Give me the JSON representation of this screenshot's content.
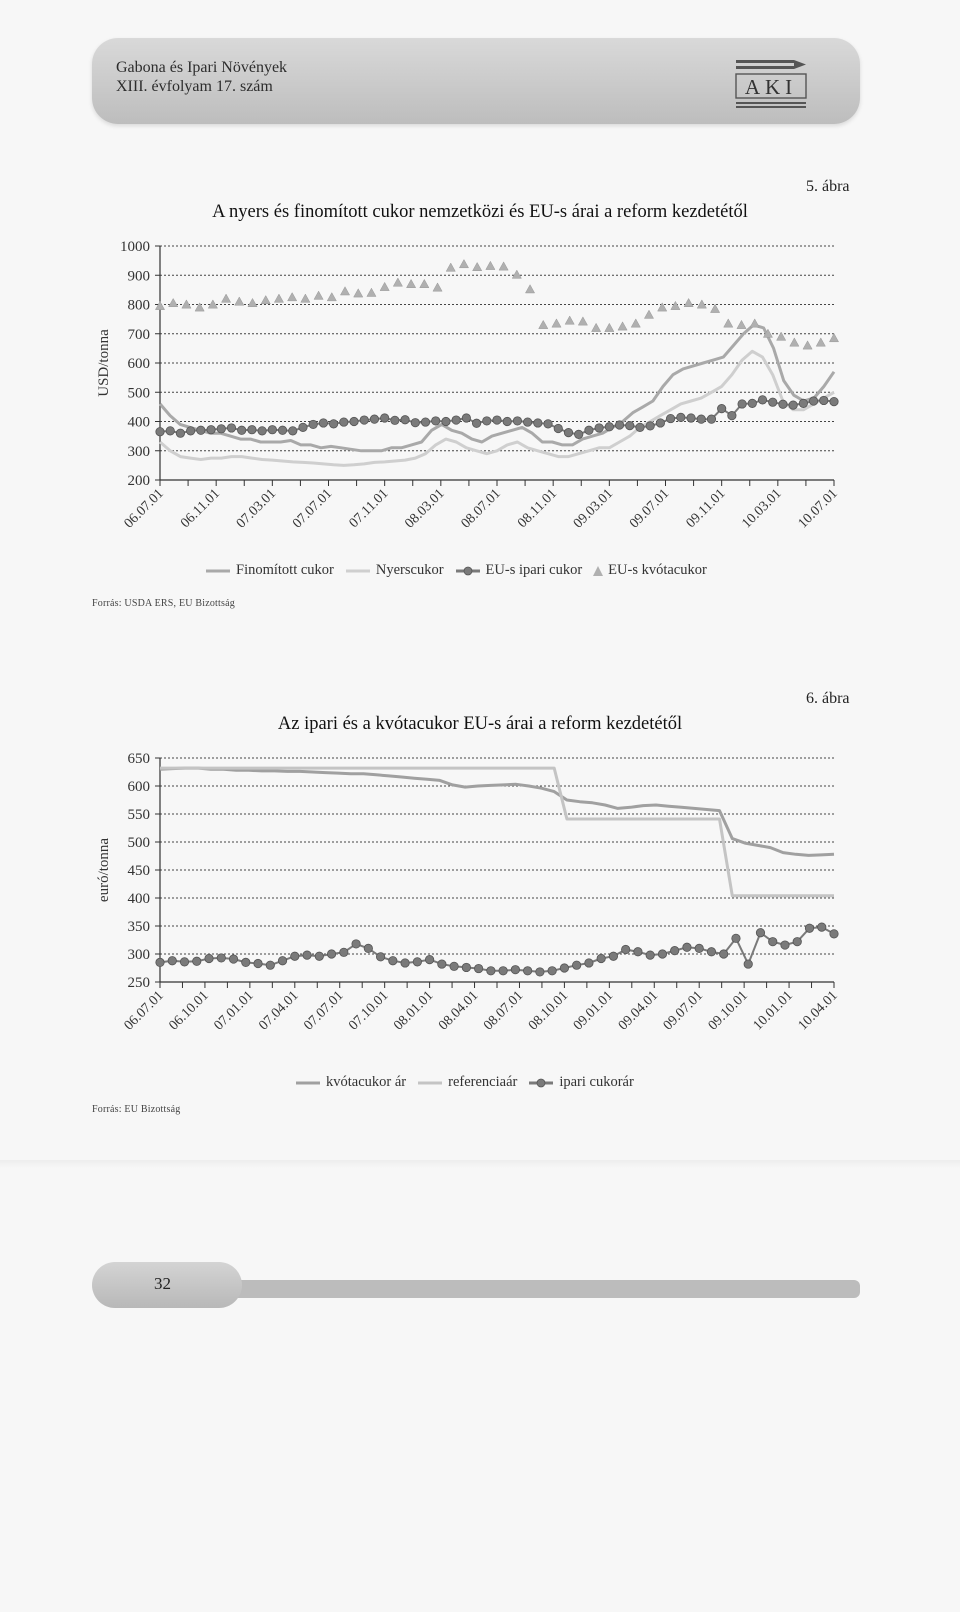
{
  "header": {
    "journal_line1": "Gabona és Ipari Növények",
    "journal_line2": "XIII. évfolyam 17. szám",
    "logo_text": "AKI"
  },
  "figure1": {
    "number": "5. ábra",
    "source": "Forrás: USDA ERS, EU Bizottság",
    "chart_data": {
      "type": "line",
      "title": "A nyers és finomított cukor nemzetközi és EU-s árai a reform kezdetétől",
      "ylabel": "USD/tonna",
      "xlabel": "",
      "ylim": [
        200,
        1000
      ],
      "yticks": [
        200,
        300,
        400,
        500,
        600,
        700,
        800,
        900,
        1000
      ],
      "grid": true,
      "legend_position": "bottom",
      "x_tick_labels": [
        "06.07.01",
        "06.11.01",
        "07.03.01",
        "07.07.01",
        "07.11.01",
        "08.03.01",
        "08.07.01",
        "08.11.01",
        "09.03.01",
        "09.07.01",
        "09.11.01",
        "10.03.01",
        "10.07.01"
      ],
      "series": [
        {
          "name": "Finomított cukor",
          "color": "#a9a9a9",
          "marker": "none",
          "values": [
            460,
            420,
            390,
            380,
            370,
            360,
            360,
            350,
            340,
            340,
            330,
            330,
            330,
            335,
            320,
            320,
            310,
            315,
            310,
            305,
            300,
            300,
            300,
            310,
            310,
            320,
            330,
            370,
            390,
            370,
            360,
            340,
            330,
            350,
            360,
            370,
            380,
            360,
            330,
            330,
            320,
            320,
            340,
            350,
            360,
            380,
            400,
            430,
            450,
            470,
            520,
            560,
            580,
            590,
            600,
            610,
            620,
            660,
            700,
            730,
            720,
            650,
            540,
            490,
            470,
            480,
            520,
            570
          ]
        },
        {
          "name": "Nyerscukor",
          "color": "#cfcfcf",
          "marker": "none",
          "values": [
            330,
            300,
            280,
            275,
            270,
            275,
            275,
            280,
            280,
            275,
            270,
            268,
            265,
            262,
            260,
            258,
            255,
            252,
            250,
            252,
            255,
            260,
            262,
            265,
            268,
            275,
            290,
            320,
            340,
            330,
            310,
            300,
            290,
            300,
            320,
            330,
            310,
            300,
            290,
            280,
            280,
            290,
            300,
            310,
            310,
            330,
            350,
            380,
            400,
            420,
            440,
            460,
            470,
            480,
            500,
            520,
            560,
            610,
            640,
            620,
            560,
            470,
            440,
            440,
            460,
            480,
            500
          ]
        },
        {
          "name": "EU-s ipari cukor",
          "color": "#7a7a7a",
          "marker": "circle",
          "values": [
            365,
            368,
            360,
            368,
            370,
            372,
            375,
            378,
            370,
            372,
            368,
            372,
            370,
            368,
            380,
            390,
            395,
            392,
            398,
            400,
            405,
            408,
            412,
            404,
            406,
            396,
            398,
            402,
            400,
            405,
            412,
            394,
            402,
            405,
            400,
            402,
            398,
            395,
            392,
            376,
            362,
            356,
            370,
            378,
            382,
            388,
            386,
            380,
            385,
            395,
            410,
            414,
            412,
            408,
            408,
            444,
            420,
            460,
            462,
            474,
            466,
            459,
            456,
            462,
            470,
            472,
            468
          ]
        },
        {
          "name": "EU-s kvótacukor",
          "color": "#b0b0b0",
          "marker": "triangle",
          "values": [
            795,
            805,
            800,
            790,
            800,
            820,
            810,
            805,
            815,
            820,
            825,
            820,
            830,
            825,
            845,
            838,
            840,
            860,
            875,
            870,
            870,
            858,
            926,
            938,
            928,
            932,
            930,
            902,
            852,
            730,
            735,
            745,
            742,
            720,
            720,
            725,
            735,
            765,
            790,
            795,
            805,
            800,
            785,
            735,
            730,
            735,
            700,
            690,
            670,
            660,
            670,
            685
          ]
        }
      ],
      "series_offsets_note": ""
    }
  },
  "figure2": {
    "number": "6. ábra",
    "source": "Forrás: EU Bizottság",
    "chart_data": {
      "type": "line",
      "title": "Az ipari és a kvótacukor EU-s árai a reform kezdetétől",
      "ylabel": "euró/tonna",
      "xlabel": "",
      "ylim": [
        250,
        650
      ],
      "yticks": [
        250,
        300,
        350,
        400,
        450,
        500,
        550,
        600,
        650
      ],
      "grid": true,
      "legend_position": "bottom",
      "x_tick_labels": [
        "06.07.01",
        "06.10.01",
        "07.01.01",
        "07.04.01",
        "07.07.01",
        "07.10.01",
        "08.01.01",
        "08.04.01",
        "08.07.01",
        "08.10.01",
        "09.01.01",
        "09.04.01",
        "09.07.01",
        "09.10.01",
        "10.01.01",
        "10.04.01"
      ],
      "series": [
        {
          "name": "kvótacukor ár",
          "color": "#a0a0a0",
          "marker": "none",
          "values": [
            630,
            631,
            632,
            632,
            630,
            630,
            628,
            628,
            627,
            627,
            626,
            626,
            625,
            624,
            623,
            622,
            622,
            620,
            618,
            616,
            614,
            612,
            610,
            602,
            598,
            600,
            601,
            602,
            603,
            600,
            596,
            590,
            575,
            572,
            570,
            566,
            560,
            562,
            565,
            566,
            564,
            562,
            560,
            558,
            556,
            506,
            498,
            494,
            490,
            481,
            478,
            476,
            477,
            478
          ]
        },
        {
          "name": "referenciaár",
          "color": "#c4c4c4",
          "marker": "none",
          "values": [
            632,
            632,
            632,
            632,
            632,
            632,
            632,
            632,
            632,
            632,
            632,
            632,
            632,
            632,
            632,
            632,
            632,
            632,
            632,
            632,
            632,
            632,
            632,
            632,
            632,
            632,
            632,
            632,
            632,
            632,
            632,
            632,
            541,
            541,
            541,
            541,
            541,
            541,
            541,
            541,
            541,
            541,
            541,
            541,
            541,
            404,
            404,
            404,
            404,
            404,
            404,
            404,
            404,
            404
          ]
        },
        {
          "name": "ipari cukorár",
          "color": "#7a7a7a",
          "marker": "circle",
          "values": [
            285,
            288,
            286,
            287,
            292,
            293,
            291,
            285,
            283,
            280,
            288,
            296,
            298,
            296,
            300,
            303,
            318,
            310,
            295,
            288,
            284,
            286,
            290,
            282,
            278,
            276,
            274,
            270,
            270,
            272,
            270,
            268,
            270,
            275,
            280,
            284,
            292,
            296,
            308,
            304,
            298,
            300,
            306,
            312,
            310,
            304,
            300,
            328,
            282,
            338,
            322,
            316,
            322,
            346,
            348,
            336
          ]
        }
      ]
    }
  },
  "footer": {
    "page_number": "32"
  }
}
